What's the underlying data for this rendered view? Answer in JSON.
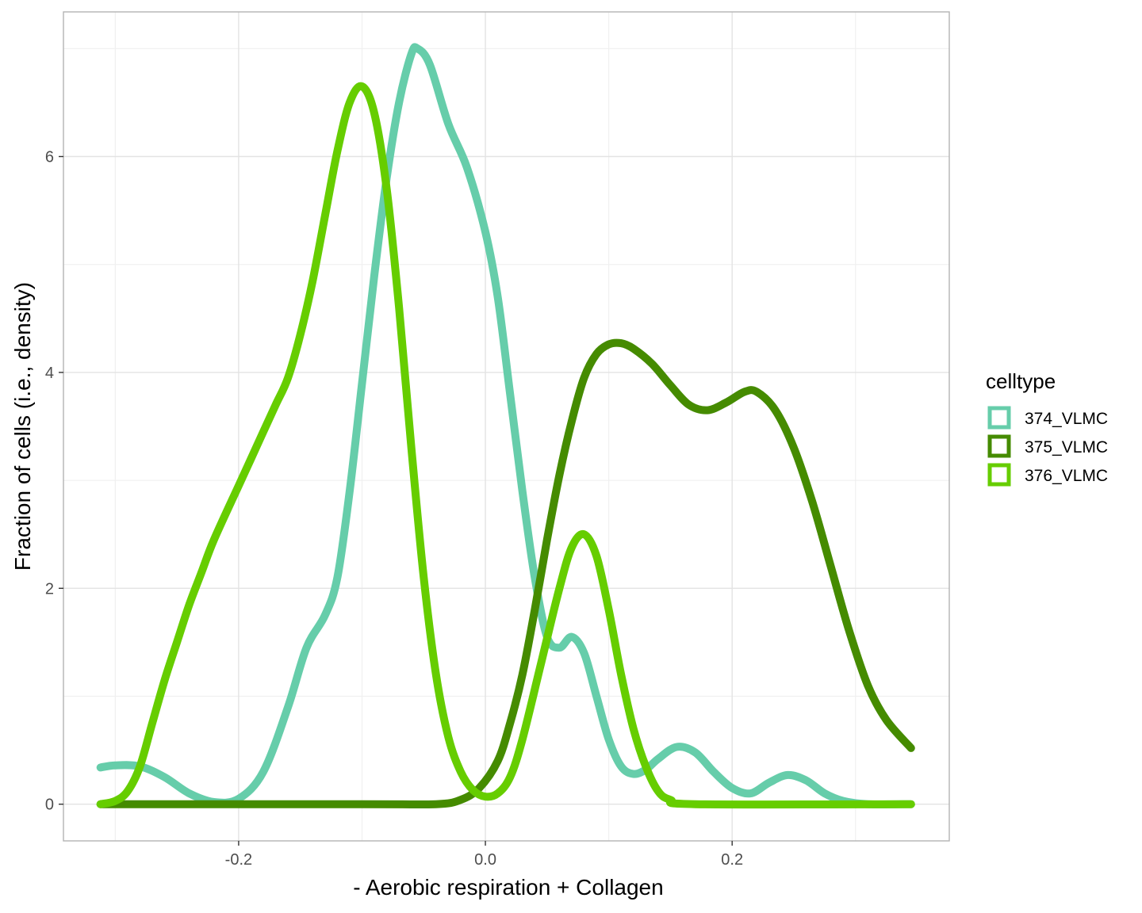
{
  "chart_data": {
    "type": "line",
    "title": "",
    "xlabel": "- Aerobic respiration + Collagen",
    "ylabel": "Fraction of cells (i.e., density)",
    "xlim": [
      -0.342,
      0.376
    ],
    "ylim": [
      -0.34,
      7.34
    ],
    "x_ticks": [
      -0.2,
      0.0,
      0.2
    ],
    "x_tick_labels": [
      "-0.2",
      "0.0",
      "0.2"
    ],
    "y_ticks": [
      0,
      2,
      4,
      6
    ],
    "y_tick_labels": [
      "0",
      "2",
      "4",
      "6"
    ],
    "x_minor": [
      -0.3,
      -0.1,
      0.1,
      0.3
    ],
    "y_minor": [
      1,
      3,
      5,
      7
    ],
    "grid": true,
    "legend": {
      "title": "celltype",
      "position": "right"
    },
    "series": [
      {
        "name": "374_VLMC",
        "color": "#66CDAA",
        "points": [
          [
            -0.312,
            0.34
          ],
          [
            -0.3,
            0.36
          ],
          [
            -0.28,
            0.35
          ],
          [
            -0.26,
            0.25
          ],
          [
            -0.24,
            0.1
          ],
          [
            -0.22,
            0.02
          ],
          [
            -0.2,
            0.05
          ],
          [
            -0.18,
            0.3
          ],
          [
            -0.16,
            0.9
          ],
          [
            -0.145,
            1.45
          ],
          [
            -0.13,
            1.75
          ],
          [
            -0.12,
            2.1
          ],
          [
            -0.11,
            2.9
          ],
          [
            -0.1,
            3.9
          ],
          [
            -0.09,
            4.9
          ],
          [
            -0.08,
            5.8
          ],
          [
            -0.07,
            6.5
          ],
          [
            -0.06,
            6.95
          ],
          [
            -0.055,
            7.0
          ],
          [
            -0.045,
            6.85
          ],
          [
            -0.03,
            6.3
          ],
          [
            -0.015,
            5.9
          ],
          [
            0.0,
            5.3
          ],
          [
            0.01,
            4.7
          ],
          [
            0.02,
            3.8
          ],
          [
            0.03,
            2.9
          ],
          [
            0.04,
            2.1
          ],
          [
            0.05,
            1.55
          ],
          [
            0.06,
            1.45
          ],
          [
            0.07,
            1.55
          ],
          [
            0.08,
            1.4
          ],
          [
            0.09,
            1.0
          ],
          [
            0.1,
            0.6
          ],
          [
            0.11,
            0.35
          ],
          [
            0.12,
            0.28
          ],
          [
            0.13,
            0.32
          ],
          [
            0.14,
            0.42
          ],
          [
            0.155,
            0.53
          ],
          [
            0.17,
            0.48
          ],
          [
            0.185,
            0.3
          ],
          [
            0.2,
            0.15
          ],
          [
            0.215,
            0.1
          ],
          [
            0.23,
            0.2
          ],
          [
            0.245,
            0.27
          ],
          [
            0.26,
            0.22
          ],
          [
            0.275,
            0.1
          ],
          [
            0.29,
            0.03
          ],
          [
            0.31,
            0.0
          ],
          [
            0.345,
            0.0
          ]
        ]
      },
      {
        "name": "375_VLMC",
        "color": "#458B00",
        "points": [
          [
            -0.312,
            0.0
          ],
          [
            -0.1,
            0.0
          ],
          [
            -0.04,
            0.0
          ],
          [
            -0.02,
            0.04
          ],
          [
            -0.005,
            0.15
          ],
          [
            0.01,
            0.4
          ],
          [
            0.02,
            0.75
          ],
          [
            0.03,
            1.2
          ],
          [
            0.04,
            1.8
          ],
          [
            0.05,
            2.45
          ],
          [
            0.06,
            3.05
          ],
          [
            0.07,
            3.55
          ],
          [
            0.08,
            3.95
          ],
          [
            0.09,
            4.17
          ],
          [
            0.1,
            4.26
          ],
          [
            0.11,
            4.27
          ],
          [
            0.12,
            4.22
          ],
          [
            0.135,
            4.08
          ],
          [
            0.15,
            3.88
          ],
          [
            0.165,
            3.7
          ],
          [
            0.18,
            3.65
          ],
          [
            0.195,
            3.72
          ],
          [
            0.21,
            3.82
          ],
          [
            0.22,
            3.82
          ],
          [
            0.235,
            3.65
          ],
          [
            0.25,
            3.3
          ],
          [
            0.265,
            2.8
          ],
          [
            0.28,
            2.2
          ],
          [
            0.295,
            1.6
          ],
          [
            0.31,
            1.1
          ],
          [
            0.325,
            0.78
          ],
          [
            0.345,
            0.52
          ]
        ]
      },
      {
        "name": "376_VLMC",
        "color": "#66CD00",
        "points": [
          [
            -0.312,
            0.0
          ],
          [
            -0.3,
            0.03
          ],
          [
            -0.29,
            0.12
          ],
          [
            -0.28,
            0.35
          ],
          [
            -0.27,
            0.75
          ],
          [
            -0.26,
            1.15
          ],
          [
            -0.25,
            1.5
          ],
          [
            -0.24,
            1.85
          ],
          [
            -0.23,
            2.15
          ],
          [
            -0.22,
            2.45
          ],
          [
            -0.2,
            2.95
          ],
          [
            -0.19,
            3.2
          ],
          [
            -0.18,
            3.45
          ],
          [
            -0.17,
            3.7
          ],
          [
            -0.16,
            3.95
          ],
          [
            -0.15,
            4.35
          ],
          [
            -0.14,
            4.85
          ],
          [
            -0.13,
            5.45
          ],
          [
            -0.12,
            6.05
          ],
          [
            -0.11,
            6.5
          ],
          [
            -0.1,
            6.65
          ],
          [
            -0.09,
            6.4
          ],
          [
            -0.08,
            5.7
          ],
          [
            -0.07,
            4.6
          ],
          [
            -0.06,
            3.3
          ],
          [
            -0.05,
            2.1
          ],
          [
            -0.04,
            1.2
          ],
          [
            -0.03,
            0.62
          ],
          [
            -0.02,
            0.3
          ],
          [
            -0.01,
            0.13
          ],
          [
            0.0,
            0.07
          ],
          [
            0.01,
            0.1
          ],
          [
            0.02,
            0.25
          ],
          [
            0.03,
            0.6
          ],
          [
            0.045,
            1.3
          ],
          [
            0.06,
            2.0
          ],
          [
            0.07,
            2.38
          ],
          [
            0.08,
            2.5
          ],
          [
            0.09,
            2.3
          ],
          [
            0.1,
            1.8
          ],
          [
            0.11,
            1.2
          ],
          [
            0.12,
            0.7
          ],
          [
            0.13,
            0.35
          ],
          [
            0.14,
            0.12
          ],
          [
            0.15,
            0.04
          ],
          [
            0.17,
            0.0
          ],
          [
            0.345,
            0.0
          ]
        ]
      }
    ]
  }
}
